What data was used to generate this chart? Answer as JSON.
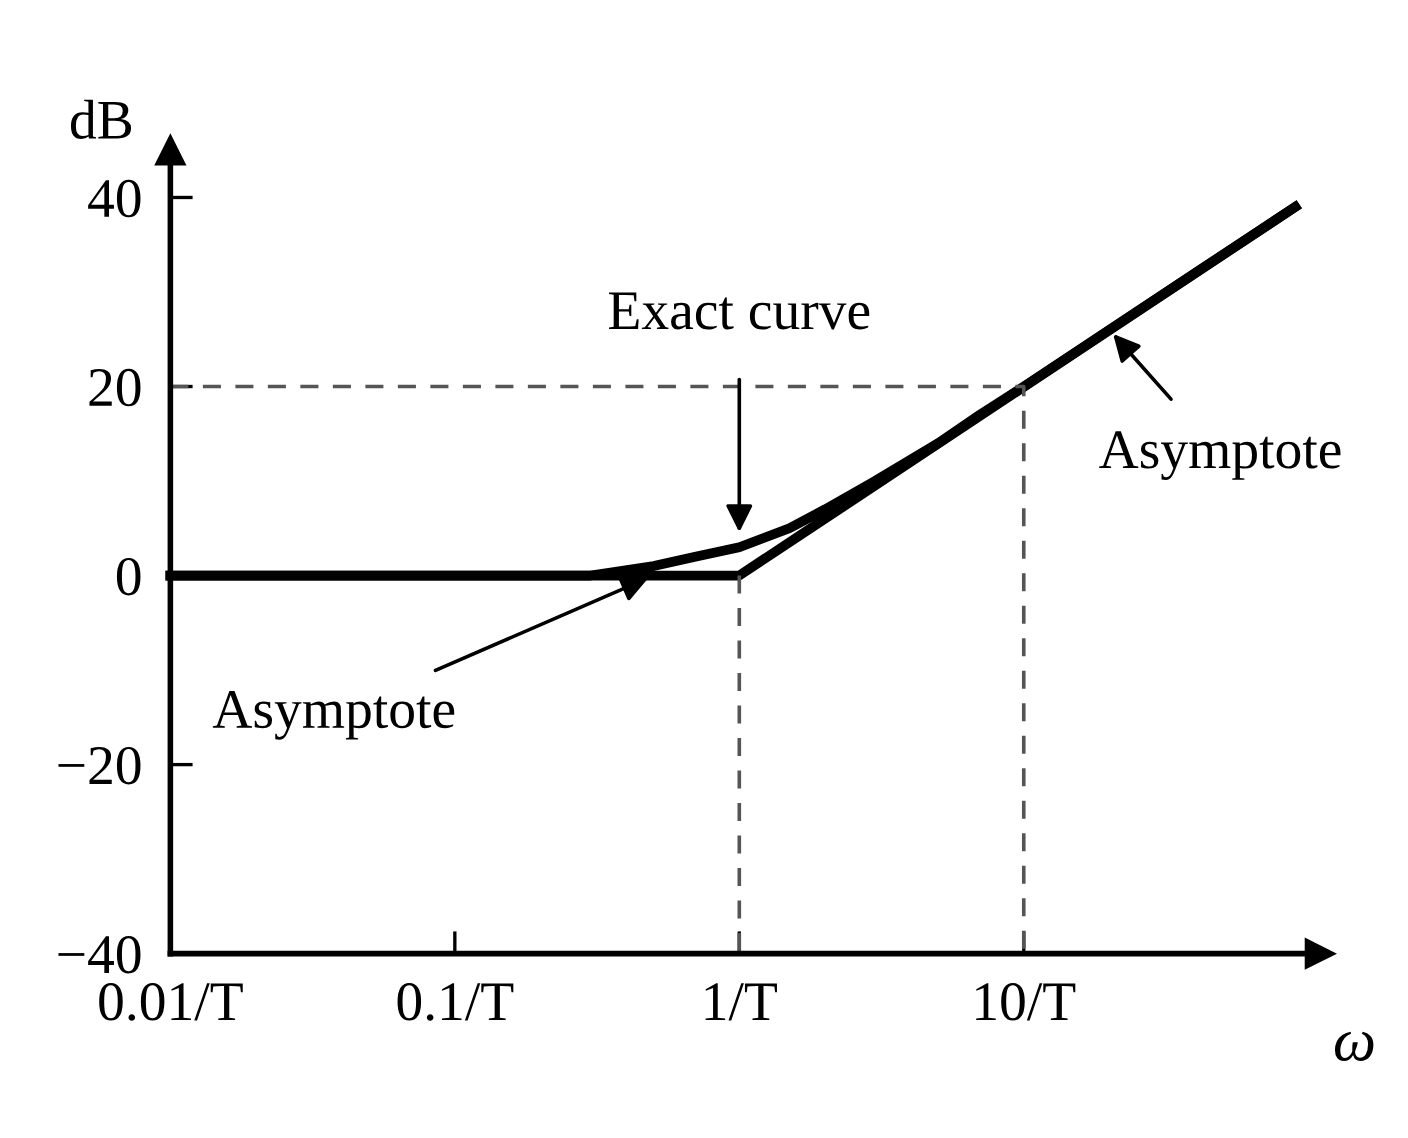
{
  "chart_data": {
    "type": "line",
    "log": "x",
    "xlim": [
      0.01,
      110
    ],
    "ylim": [
      -40,
      45
    ],
    "xticks": [
      {
        "value": 0.01,
        "label": "0.01/T"
      },
      {
        "value": 0.1,
        "label": "0.1/T"
      },
      {
        "value": 1,
        "label": "1/T"
      },
      {
        "value": 10,
        "label": "10/T"
      }
    ],
    "yticks": [
      {
        "value": -40,
        "label": "−40"
      },
      {
        "value": -20,
        "label": "−20"
      },
      {
        "value": 0,
        "label": "0"
      },
      {
        "value": 20,
        "label": "20"
      },
      {
        "value": 40,
        "label": "40"
      }
    ],
    "xlabel": "ω",
    "ylabel": "dB",
    "grid": false,
    "legend": false,
    "series": [
      {
        "color": "#000000",
        "x": [
          0.01,
          0.03,
          0.1,
          0.2,
          0.3,
          0.5,
          0.7,
          1,
          1.5,
          2,
          3,
          5,
          7,
          10,
          20,
          40,
          90
        ],
        "values": [
          0,
          0,
          0,
          0,
          0,
          1,
          2,
          3,
          5,
          7,
          10,
          14,
          17,
          20,
          26,
          32,
          39
        ]
      },
      {
        "color": "#000000",
        "x": [
          0.01,
          1,
          90
        ],
        "values": [
          0,
          0,
          39
        ]
      },
      {
        "color": "#555555",
        "line_style": "dashed",
        "x": [
          0.01,
          10,
          10
        ],
        "values": [
          20,
          20,
          -40
        ]
      },
      {
        "color": "#555555",
        "line_style": "dashed",
        "x": [
          1,
          1
        ],
        "values": [
          0,
          -40
        ]
      }
    ],
    "annotations": [
      {
        "text": "Exact curve",
        "x": 1,
        "y": 4
      },
      {
        "text": "Asymptote",
        "x": 20,
        "y": 26
      },
      {
        "text": "Asymptote",
        "x": 0.5,
        "y": 0
      }
    ]
  }
}
